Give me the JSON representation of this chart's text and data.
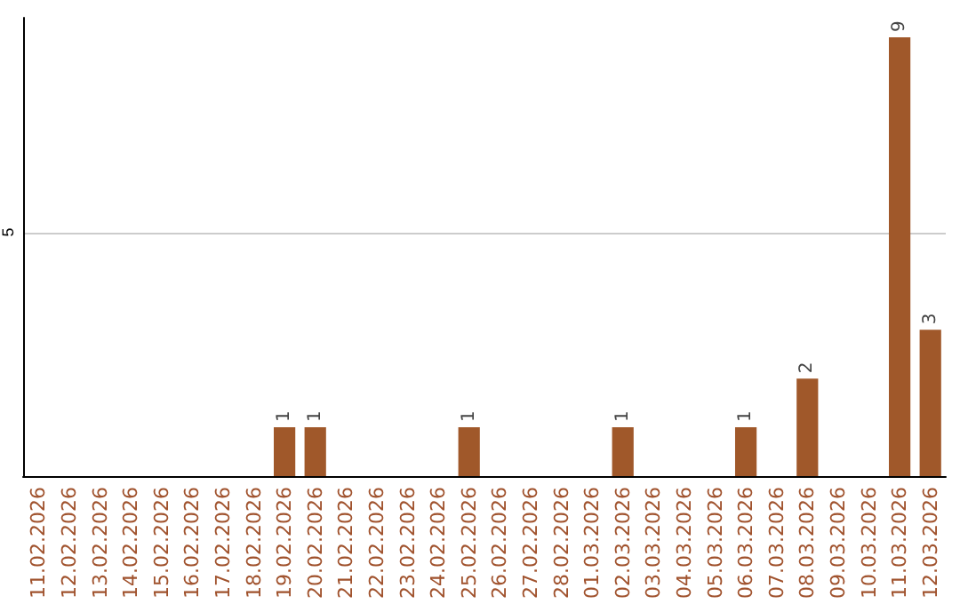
{
  "chart_data": {
    "type": "bar",
    "categories": [
      "11.02.2026",
      "12.02.2026",
      "13.02.2026",
      "14.02.2026",
      "15.02.2026",
      "16.02.2026",
      "17.02.2026",
      "18.02.2026",
      "19.02.2026",
      "20.02.2026",
      "21.02.2026",
      "22.02.2026",
      "23.02.2026",
      "24.02.2026",
      "25.02.2026",
      "26.02.2026",
      "27.02.2026",
      "28.02.2026",
      "01.03.2026",
      "02.03.2026",
      "03.03.2026",
      "04.03.2026",
      "05.03.2026",
      "06.03.2026",
      "07.03.2026",
      "08.03.2026",
      "09.03.2026",
      "10.03.2026",
      "11.03.2026",
      "12.03.2026"
    ],
    "values": [
      0,
      0,
      0,
      0,
      0,
      0,
      0,
      0,
      1,
      1,
      0,
      0,
      0,
      0,
      1,
      0,
      0,
      0,
      0,
      1,
      0,
      0,
      0,
      1,
      0,
      2,
      0,
      0,
      9,
      3
    ],
    "value_labels": [
      null,
      null,
      null,
      null,
      null,
      null,
      null,
      null,
      "1",
      "1",
      null,
      null,
      null,
      null,
      "1",
      null,
      null,
      null,
      null,
      "1",
      null,
      null,
      null,
      "1",
      null,
      "2",
      null,
      null,
      "9",
      "3"
    ],
    "color": "#a0582a",
    "ylim": [
      0,
      9.4
    ],
    "yticks": [
      5
    ],
    "grid": "y"
  }
}
